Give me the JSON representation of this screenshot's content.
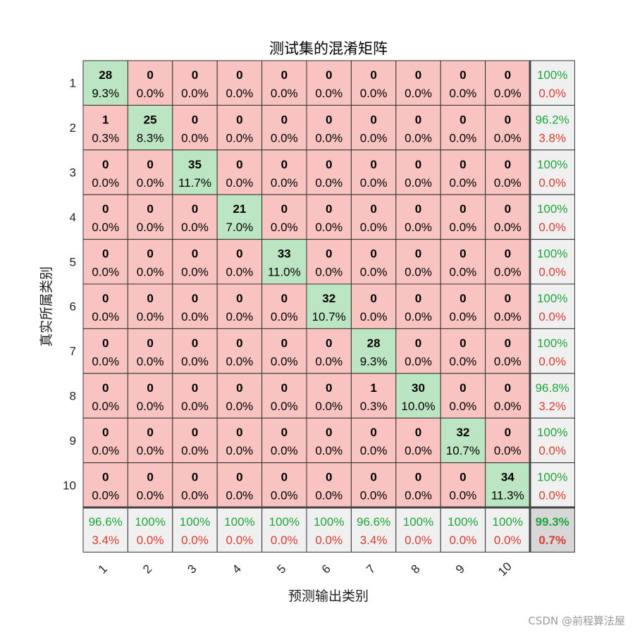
{
  "watermark": "CSDN @前程算法屋",
  "chart_data": {
    "type": "heatmap",
    "title": "测试集的混淆矩阵",
    "xlabel": "预测输出类别",
    "ylabel": "真实所属类别",
    "classes": [
      "1",
      "2",
      "3",
      "4",
      "5",
      "6",
      "7",
      "8",
      "9",
      "10"
    ],
    "matrix": [
      [
        28,
        0,
        0,
        0,
        0,
        0,
        0,
        0,
        0,
        0
      ],
      [
        1,
        25,
        0,
        0,
        0,
        0,
        0,
        0,
        0,
        0
      ],
      [
        0,
        0,
        35,
        0,
        0,
        0,
        0,
        0,
        0,
        0
      ],
      [
        0,
        0,
        0,
        21,
        0,
        0,
        0,
        0,
        0,
        0
      ],
      [
        0,
        0,
        0,
        0,
        33,
        0,
        0,
        0,
        0,
        0
      ],
      [
        0,
        0,
        0,
        0,
        0,
        32,
        0,
        0,
        0,
        0
      ],
      [
        0,
        0,
        0,
        0,
        0,
        0,
        28,
        0,
        0,
        0
      ],
      [
        0,
        0,
        0,
        0,
        0,
        0,
        1,
        30,
        0,
        0
      ],
      [
        0,
        0,
        0,
        0,
        0,
        0,
        0,
        0,
        32,
        0
      ],
      [
        0,
        0,
        0,
        0,
        0,
        0,
        0,
        0,
        0,
        34
      ]
    ],
    "cell_percent": [
      [
        "9.3%",
        "0.0%",
        "0.0%",
        "0.0%",
        "0.0%",
        "0.0%",
        "0.0%",
        "0.0%",
        "0.0%",
        "0.0%"
      ],
      [
        "0.3%",
        "8.3%",
        "0.0%",
        "0.0%",
        "0.0%",
        "0.0%",
        "0.0%",
        "0.0%",
        "0.0%",
        "0.0%"
      ],
      [
        "0.0%",
        "0.0%",
        "11.7%",
        "0.0%",
        "0.0%",
        "0.0%",
        "0.0%",
        "0.0%",
        "0.0%",
        "0.0%"
      ],
      [
        "0.0%",
        "0.0%",
        "0.0%",
        "7.0%",
        "0.0%",
        "0.0%",
        "0.0%",
        "0.0%",
        "0.0%",
        "0.0%"
      ],
      [
        "0.0%",
        "0.0%",
        "0.0%",
        "0.0%",
        "11.0%",
        "0.0%",
        "0.0%",
        "0.0%",
        "0.0%",
        "0.0%"
      ],
      [
        "0.0%",
        "0.0%",
        "0.0%",
        "0.0%",
        "0.0%",
        "10.7%",
        "0.0%",
        "0.0%",
        "0.0%",
        "0.0%"
      ],
      [
        "0.0%",
        "0.0%",
        "0.0%",
        "0.0%",
        "0.0%",
        "0.0%",
        "9.3%",
        "0.0%",
        "0.0%",
        "0.0%"
      ],
      [
        "0.0%",
        "0.0%",
        "0.0%",
        "0.0%",
        "0.0%",
        "0.0%",
        "0.3%",
        "10.0%",
        "0.0%",
        "0.0%"
      ],
      [
        "0.0%",
        "0.0%",
        "0.0%",
        "0.0%",
        "0.0%",
        "0.0%",
        "0.0%",
        "0.0%",
        "10.7%",
        "0.0%"
      ],
      [
        "0.0%",
        "0.0%",
        "0.0%",
        "0.0%",
        "0.0%",
        "0.0%",
        "0.0%",
        "0.0%",
        "0.0%",
        "11.3%"
      ]
    ],
    "row_summary": [
      [
        "100%",
        "0.0%"
      ],
      [
        "96.2%",
        "3.8%"
      ],
      [
        "100%",
        "0.0%"
      ],
      [
        "100%",
        "0.0%"
      ],
      [
        "100%",
        "0.0%"
      ],
      [
        "100%",
        "0.0%"
      ],
      [
        "100%",
        "0.0%"
      ],
      [
        "96.8%",
        "3.2%"
      ],
      [
        "100%",
        "0.0%"
      ],
      [
        "100%",
        "0.0%"
      ]
    ],
    "col_summary": [
      [
        "96.6%",
        "3.4%"
      ],
      [
        "100%",
        "0.0%"
      ],
      [
        "100%",
        "0.0%"
      ],
      [
        "100%",
        "0.0%"
      ],
      [
        "100%",
        "0.0%"
      ],
      [
        "100%",
        "0.0%"
      ],
      [
        "96.6%",
        "3.4%"
      ],
      [
        "100%",
        "0.0%"
      ],
      [
        "100%",
        "0.0%"
      ],
      [
        "100%",
        "0.0%"
      ]
    ],
    "overall": [
      "99.3%",
      "0.7%"
    ],
    "colors": {
      "correct": "#bce5c4",
      "incorrect": "#f8c3c0",
      "summary": "#f0f0f0",
      "overall": "#d7d7d7",
      "ok_text": "#1fa53a",
      "bad_text": "#dc3a2e"
    }
  }
}
